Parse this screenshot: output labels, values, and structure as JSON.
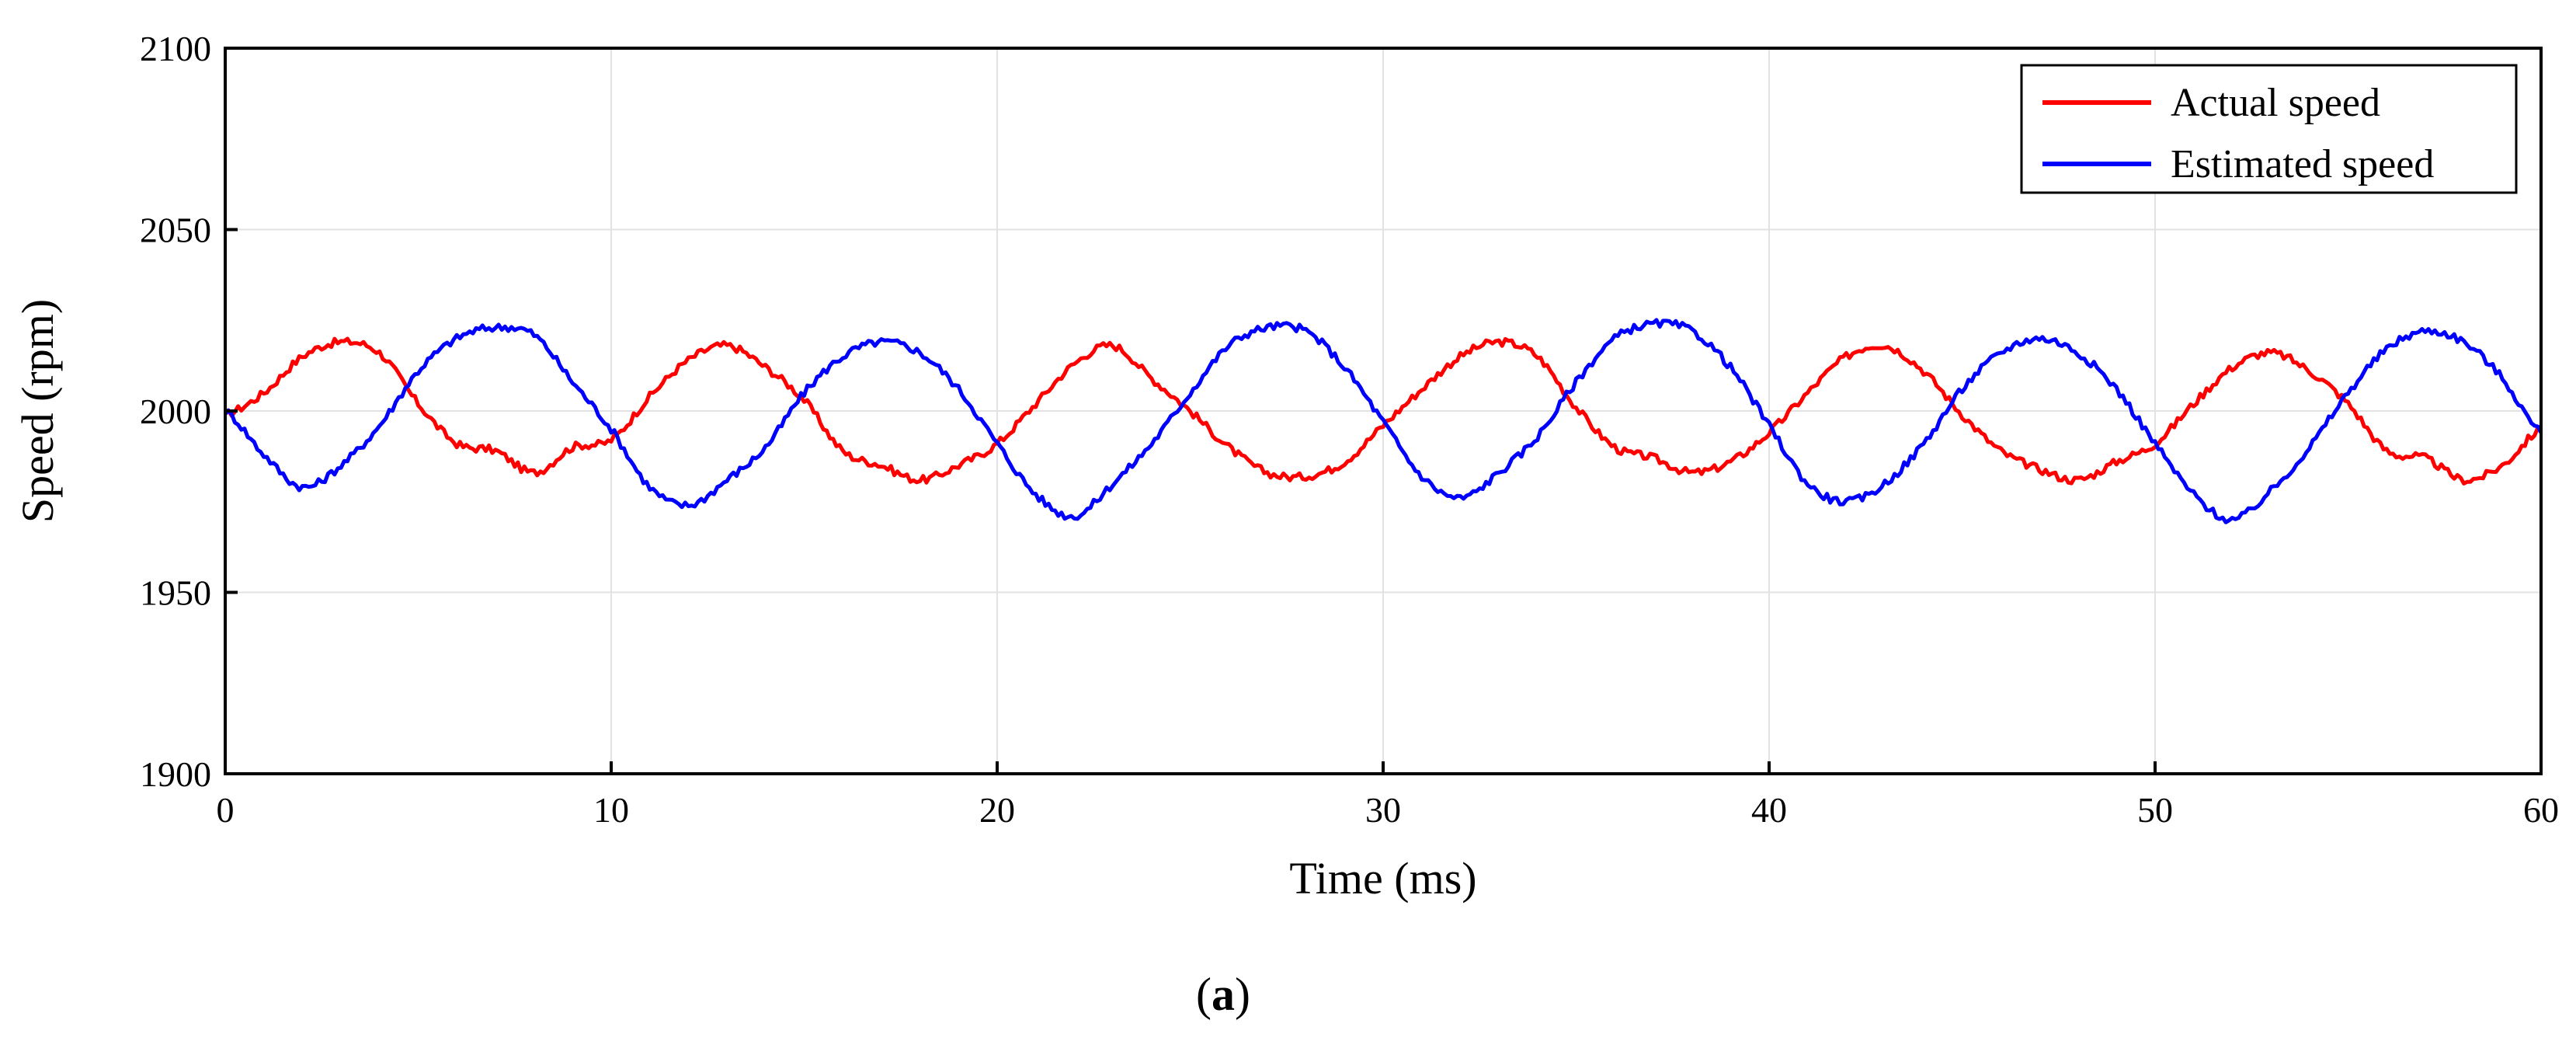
{
  "chart_data": {
    "type": "line",
    "title": "",
    "xlabel": "Time (ms)",
    "ylabel": "Speed (rpm)",
    "xlim": [
      0,
      60
    ],
    "ylim": [
      1900,
      2100
    ],
    "xticks": [
      0,
      10,
      20,
      30,
      40,
      50,
      60
    ],
    "yticks": [
      1900,
      1950,
      2000,
      2050,
      2100
    ],
    "grid": true,
    "legend_position": "top-right",
    "caption_open": "(",
    "caption_letter": "a",
    "caption_close": ")",
    "series": [
      {
        "name": "Actual speed",
        "color": "#ff0000",
        "x": [
          0,
          1,
          2,
          3,
          4,
          5,
          6,
          7,
          8,
          9,
          10,
          11,
          12,
          13,
          14,
          15,
          16,
          17,
          18,
          19,
          20,
          21,
          22,
          23,
          24,
          25,
          26,
          27,
          28,
          29,
          30,
          31,
          32,
          33,
          34,
          35,
          36,
          37,
          38,
          39,
          40,
          41,
          42,
          43,
          44,
          45,
          46,
          47,
          48,
          49,
          50,
          51,
          52,
          53,
          54,
          55,
          56,
          57,
          58,
          59,
          60
        ],
        "values": [
          1999,
          2005,
          2015,
          2019,
          2016,
          2002,
          1991,
          1989,
          1983,
          1990,
          1992,
          2004,
          2014,
          2018,
          2012,
          2003,
          1989,
          1985,
          1981,
          1985,
          1991,
          2002,
          2013,
          2018,
          2009,
          2000,
          1990,
          1983,
          1982,
          1986,
          1996,
          2006,
          2015,
          2019,
          2015,
          2001,
          1990,
          1987,
          1983,
          1986,
          1994,
          2005,
          2015,
          2018,
          2011,
          1999,
          1989,
          1984,
          1981,
          1986,
          1991,
          2002,
          2012,
          2016,
          2011,
          2002,
          1989,
          1987,
          1981,
          1985,
          1995
        ]
      },
      {
        "name": "Estimated speed",
        "color": "#0000ff",
        "x": [
          0,
          1,
          2,
          3,
          4,
          5,
          6,
          7,
          8,
          9,
          10,
          11,
          12,
          13,
          14,
          15,
          16,
          17,
          18,
          19,
          20,
          21,
          22,
          23,
          24,
          25,
          26,
          27,
          28,
          29,
          30,
          31,
          32,
          33,
          34,
          35,
          36,
          37,
          38,
          39,
          40,
          41,
          42,
          43,
          44,
          45,
          46,
          47,
          48,
          49,
          50,
          51,
          52,
          53,
          54,
          55,
          56,
          57,
          58,
          59,
          60
        ],
        "values": [
          2000,
          1988,
          1979,
          1985,
          1996,
          2011,
          2020,
          2023,
          2021,
          2008,
          1995,
          1979,
          1974,
          1981,
          1990,
          2005,
          2015,
          2019,
          2016,
          2006,
          1991,
          1977,
          1971,
          1980,
          1991,
          2005,
          2018,
          2023,
          2022,
          2012,
          1997,
          1982,
          1976,
          1983,
          1993,
          2008,
          2020,
          2024,
          2022,
          2012,
          1996,
          1980,
          1975,
          1980,
          1991,
          2006,
          2016,
          2020,
          2016,
          2006,
          1991,
          1977,
          1970,
          1978,
          1990,
          2005,
          2017,
          2022,
          2019,
          2009,
          1994
        ]
      }
    ]
  }
}
